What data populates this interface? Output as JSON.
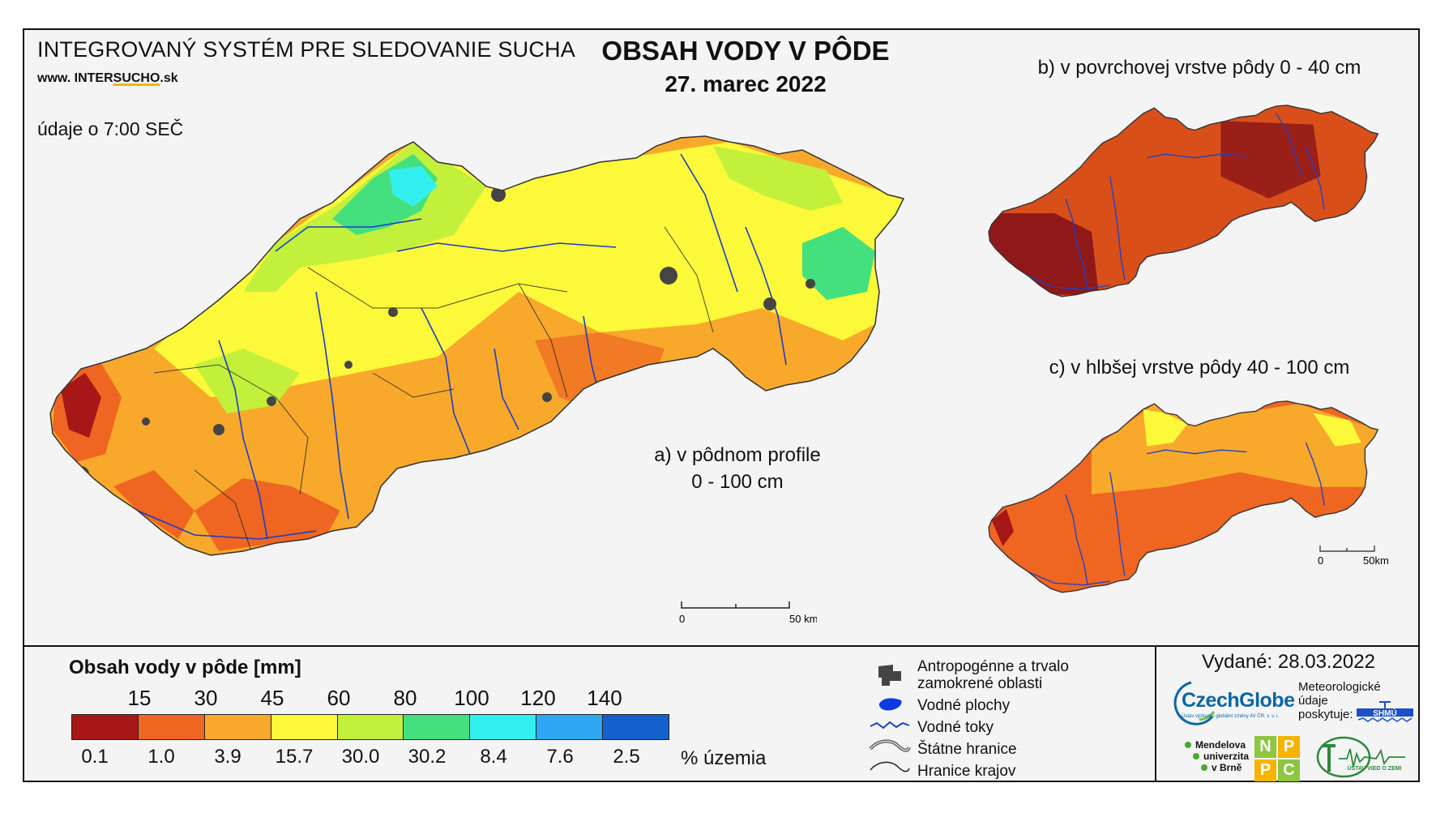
{
  "header": {
    "system_title": "INTEGROVANÝ SYSTÉM PRE SLEDOVANIE SUCHA",
    "site_prefix": "www. INTER",
    "site_mid": "SUCHO",
    "site_suffix": ".sk",
    "observation_time": "údaje o 7:00 SEČ",
    "main_title": "OBSAH VODY V PÔDE",
    "date": "27. marec 2022"
  },
  "maps": {
    "a_label_line1": "a) v pôdnom profile",
    "a_label_line2": "0 - 100 cm",
    "b_label": "b) v povrchovej vrstve pôdy 0 - 40 cm",
    "c_label": "c) v hlbšej vrstve pôdy 40 - 100 cm",
    "scale_main_start": "0",
    "scale_main_end": "50 km",
    "scale_small_start": "0",
    "scale_small_end": "50km"
  },
  "legend": {
    "title": "Obsah vody v pôde  [mm]",
    "thresholds": [
      "15",
      "30",
      "45",
      "60",
      "80",
      "100",
      "120",
      "140"
    ],
    "classes": [
      {
        "color": "#a61717",
        "percent": "0.1"
      },
      {
        "color": "#ee6622",
        "percent": "1.0"
      },
      {
        "color": "#f8a92b",
        "percent": "3.9"
      },
      {
        "color": "#fbf93a",
        "percent": "15.7"
      },
      {
        "color": "#c3f03b",
        "percent": "30.0"
      },
      {
        "color": "#45e07e",
        "percent": "30.2"
      },
      {
        "color": "#33f0f0",
        "percent": "8.4"
      },
      {
        "color": "#2fa8f2",
        "percent": "7.6"
      },
      {
        "color": "#1460cc",
        "percent": "2.5"
      }
    ],
    "percent_unit": "% územia"
  },
  "symbols": {
    "anthro_line1": "Antropogénne a trvalo",
    "anthro_line2": "zamokrené oblasti",
    "water_bodies": "Vodné plochy",
    "water_streams": "Vodné toky",
    "state_border": "Štátne hranice",
    "region_border": "Hranice krajov"
  },
  "footer": {
    "issued": "Vydané: 28.03.2022",
    "czechglobe": "CzechGlobe",
    "czechglobe_sub": "Ústav výzkumu globální změny AV ČR, v. v. i.",
    "meteo_line1": "Meteorologické",
    "meteo_line2": "údaje",
    "meteo_line3": "poskytuje:",
    "shmu": "SHMÚ",
    "mendel_line1": "Mendelova",
    "mendel_line2": "univerzita",
    "mendel_line3": "v Brně",
    "npc": [
      "N",
      "P",
      "P",
      "C"
    ],
    "uvz": "ÚSTAV VIED O ZEMI"
  }
}
